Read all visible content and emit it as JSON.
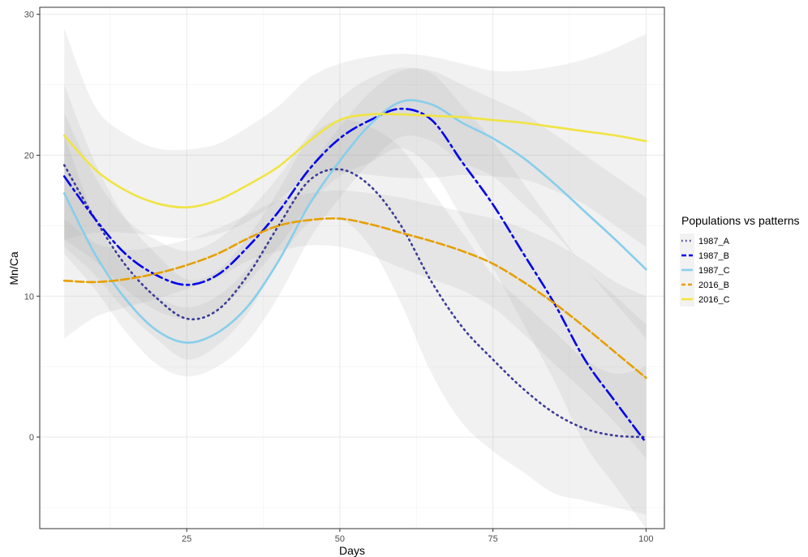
{
  "chart_data": {
    "type": "line",
    "xlabel": "Days",
    "ylabel": "Mn/Ca",
    "xlim": [
      1,
      103
    ],
    "ylim": [
      -6.5,
      30.5
    ],
    "x_ticks": [
      25,
      50,
      75,
      100
    ],
    "y_ticks": [
      0,
      10,
      20,
      30
    ],
    "x_tick_labels": [
      "25",
      "50",
      "75",
      "100"
    ],
    "y_tick_labels": [
      "0",
      "10",
      "20",
      "30"
    ],
    "grid": true,
    "legend": {
      "title": "Populations vs patterns",
      "placement": "right"
    },
    "series": [
      {
        "name": "1987_A",
        "color": "#3b3b98",
        "linestyle": "dotted",
        "x": [
          5,
          10,
          15,
          20,
          25,
          30,
          35,
          40,
          45,
          50,
          55,
          60,
          65,
          70,
          75,
          80,
          85,
          90,
          95,
          100
        ],
        "y": [
          19.3,
          15.5,
          12.2,
          9.9,
          8.4,
          9.0,
          11.5,
          15.0,
          18.2,
          19.0,
          17.8,
          15.0,
          11.0,
          7.8,
          5.5,
          3.4,
          1.7,
          0.6,
          0.1,
          0.0
        ],
        "ci_upper": [
          25.0,
          19.5,
          15.5,
          13.0,
          11.2,
          11.8,
          14.2,
          17.5,
          21.2,
          22.5,
          22.0,
          20.5,
          17.5,
          14.5,
          11.5,
          9.5,
          7.5,
          5.5,
          4.5,
          5.0
        ],
        "ci_lower": [
          13.5,
          11.5,
          9.0,
          7.0,
          5.5,
          6.5,
          8.8,
          12.5,
          15.2,
          15.5,
          13.5,
          9.5,
          4.5,
          1.0,
          -1.0,
          -2.5,
          -4.0,
          -4.5,
          -5.0,
          -5.5
        ]
      },
      {
        "name": "1987_B",
        "color": "#0000ee",
        "linestyle": "longdash-dot",
        "x": [
          5,
          10,
          15,
          20,
          25,
          30,
          35,
          40,
          45,
          50,
          55,
          60,
          65,
          70,
          75,
          80,
          85,
          90,
          95,
          100
        ],
        "y": [
          18.5,
          15.5,
          13.0,
          11.5,
          10.8,
          11.5,
          13.5,
          16.0,
          19.0,
          21.2,
          22.5,
          23.3,
          22.5,
          19.5,
          16.5,
          13.0,
          9.5,
          5.5,
          2.5,
          -0.4
        ],
        "ci_upper": [
          23.0,
          18.5,
          15.5,
          14.0,
          13.2,
          14.0,
          16.0,
          18.5,
          21.5,
          24.0,
          25.5,
          26.2,
          25.8,
          23.5,
          21.0,
          18.0,
          15.0,
          12.0,
          10.0,
          8.0
        ],
        "ci_lower": [
          14.0,
          12.5,
          10.5,
          9.0,
          8.4,
          9.0,
          11.0,
          13.5,
          16.5,
          18.5,
          19.5,
          20.5,
          19.0,
          15.5,
          12.0,
          8.0,
          4.0,
          -0.5,
          -3.5,
          -6.5
        ]
      },
      {
        "name": "1987_C",
        "color": "#87ceeb",
        "linestyle": "solid",
        "x": [
          5,
          10,
          15,
          20,
          25,
          30,
          35,
          40,
          45,
          50,
          55,
          60,
          65,
          70,
          75,
          80,
          85,
          90,
          95,
          100
        ],
        "y": [
          17.3,
          13.0,
          9.8,
          7.6,
          6.7,
          7.4,
          9.3,
          12.5,
          16.5,
          19.6,
          22.2,
          23.8,
          23.6,
          22.3,
          21.2,
          19.8,
          18.0,
          16.0,
          14.0,
          11.9
        ],
        "ci_upper": [
          21.5,
          15.5,
          12.0,
          10.0,
          9.2,
          10.0,
          12.0,
          15.0,
          19.0,
          22.0,
          24.5,
          26.0,
          26.0,
          25.0,
          24.0,
          23.0,
          21.5,
          20.0,
          18.5,
          17.0
        ],
        "ci_lower": [
          13.0,
          10.5,
          7.5,
          5.2,
          4.3,
          5.0,
          6.8,
          10.0,
          14.0,
          17.0,
          19.5,
          21.3,
          21.0,
          19.5,
          18.5,
          16.5,
          14.5,
          12.0,
          9.5,
          7.0
        ]
      },
      {
        "name": "2016_B",
        "color": "#e69f00",
        "linestyle": "dashed",
        "x": [
          5,
          10,
          15,
          20,
          25,
          30,
          35,
          40,
          45,
          50,
          55,
          60,
          65,
          70,
          75,
          80,
          85,
          90,
          95,
          100
        ],
        "y": [
          11.1,
          11.0,
          11.2,
          11.6,
          12.2,
          13.0,
          14.1,
          15.0,
          15.4,
          15.5,
          15.1,
          14.5,
          13.9,
          13.2,
          12.3,
          11.0,
          9.5,
          7.8,
          6.0,
          4.2
        ],
        "ci_upper": [
          15.5,
          13.8,
          13.3,
          13.5,
          14.0,
          14.8,
          15.8,
          16.8,
          17.3,
          17.5,
          17.3,
          17.0,
          16.5,
          16.0,
          15.5,
          14.8,
          13.8,
          12.5,
          11.0,
          10.0
        ],
        "ci_lower": [
          7.0,
          8.5,
          9.2,
          9.8,
          10.5,
          11.3,
          12.5,
          13.2,
          13.6,
          13.5,
          12.9,
          12.0,
          11.2,
          10.4,
          9.2,
          7.3,
          5.2,
          3.2,
          1.0,
          -1.5
        ]
      },
      {
        "name": "2016_C",
        "color": "#f0e442",
        "linestyle": "solid",
        "x": [
          5,
          10,
          15,
          20,
          25,
          30,
          35,
          40,
          45,
          50,
          55,
          60,
          65,
          70,
          75,
          80,
          85,
          90,
          95,
          100
        ],
        "y": [
          21.4,
          19.0,
          17.5,
          16.6,
          16.3,
          16.8,
          17.9,
          19.2,
          21.0,
          22.5,
          22.9,
          22.9,
          22.8,
          22.7,
          22.5,
          22.3,
          22.0,
          21.7,
          21.4,
          21.0
        ],
        "ci_upper": [
          29.0,
          23.5,
          21.5,
          20.5,
          20.4,
          20.8,
          22.0,
          23.5,
          25.5,
          26.5,
          27.0,
          27.2,
          27.0,
          26.5,
          26.0,
          26.0,
          26.3,
          26.8,
          27.6,
          28.6
        ],
        "ci_lower": [
          14.0,
          14.5,
          14.5,
          14.3,
          14.1,
          14.4,
          15.3,
          16.8,
          18.5,
          18.8,
          18.6,
          18.4,
          18.4,
          18.6,
          18.5,
          18.3,
          17.5,
          16.5,
          15.0,
          13.5
        ]
      }
    ]
  }
}
